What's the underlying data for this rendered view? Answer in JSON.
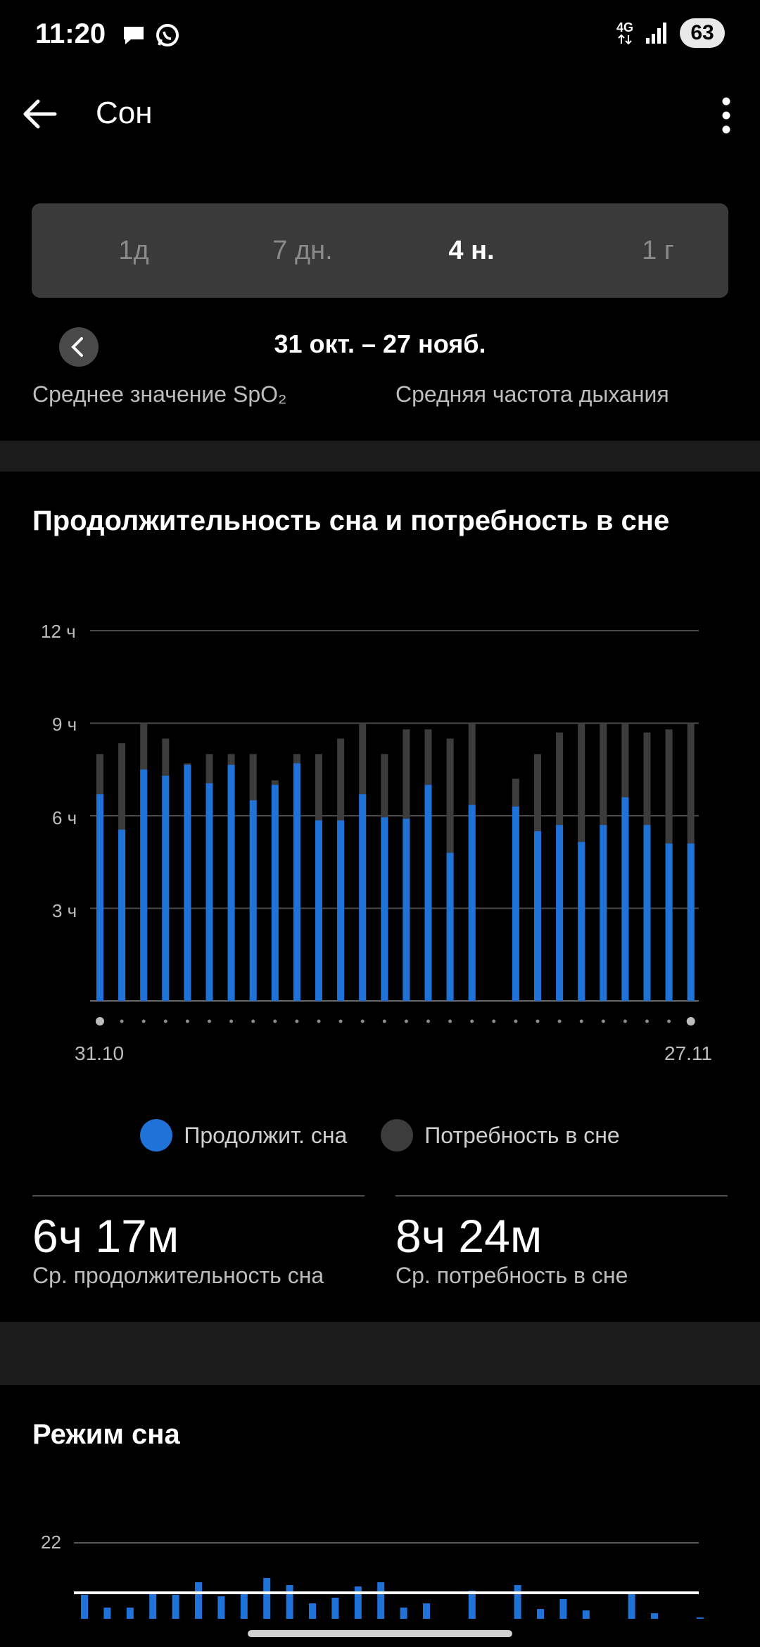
{
  "status": {
    "time": "11:20",
    "network": "4G",
    "battery": "63",
    "icons": [
      "message-icon",
      "whatsapp-icon",
      "signal-icon"
    ]
  },
  "app_bar": {
    "title": "Сон",
    "back_icon": "arrow-left-icon",
    "menu_icon": "more-vert-icon"
  },
  "period": {
    "tabs": [
      "1д",
      "7 дн.",
      "4 н.",
      "1 г"
    ],
    "active": "4 н.",
    "range": "31 окт. – 27 нояб.",
    "prev_icon": "chevron-left-icon"
  },
  "metrics_partial": {
    "left": "Среднее значение SpO₂",
    "right": "Средняя частота дыхания"
  },
  "duration_section": {
    "title": "Продолжительность сна и потребность в сне",
    "legend": {
      "duration": "Продолжит. сна",
      "need": "Потребность в сне"
    },
    "avg_duration": {
      "value": "6ч 17м",
      "label": "Ср. продолжительность сна"
    },
    "avg_need": {
      "value": "8ч 24м",
      "label": "Ср. потребность в сне"
    }
  },
  "colors": {
    "accent": "#1f72d8",
    "need": "#3c3c3c",
    "background": "#000000",
    "band": "#1b1b1b"
  },
  "chart_data": [
    {
      "type": "bar",
      "y_ticks": [
        "12 ч",
        "9 ч",
        "6 ч",
        "3 ч"
      ],
      "ylim": [
        0,
        12
      ],
      "x_start_label": "31.10",
      "x_end_label": "27.11",
      "grid": true,
      "series": [
        {
          "name": "Продолжит. сна",
          "values": [
            6.7,
            5.55,
            7.5,
            7.3,
            7.65,
            7.05,
            7.65,
            6.5,
            7.0,
            7.7,
            5.85,
            5.85,
            6.7,
            5.95,
            5.9,
            7.0,
            4.8,
            6.35,
            null,
            6.3,
            5.5,
            5.7,
            5.15,
            5.7,
            6.6,
            5.7,
            5.1,
            5.1
          ]
        },
        {
          "name": "Потребность в сне",
          "values": [
            8.0,
            8.35,
            9.0,
            8.5,
            7.7,
            8.0,
            8.0,
            8.0,
            7.15,
            8.0,
            8.0,
            8.5,
            9.0,
            8.0,
            8.8,
            8.8,
            8.5,
            9.0,
            null,
            7.2,
            8.0,
            8.7,
            9.0,
            9.0,
            9.0,
            8.7,
            8.8,
            9.0
          ]
        }
      ]
    },
    {
      "type": "bar",
      "title": "Режим сна",
      "y_ticks": [
        "22"
      ],
      "values": [
        34,
        16,
        16,
        36,
        34,
        52,
        32,
        38,
        58,
        48,
        22,
        30,
        46,
        52,
        16,
        22,
        null,
        40,
        null,
        48,
        14,
        28,
        12,
        null,
        36,
        8,
        null,
        2
      ]
    }
  ]
}
